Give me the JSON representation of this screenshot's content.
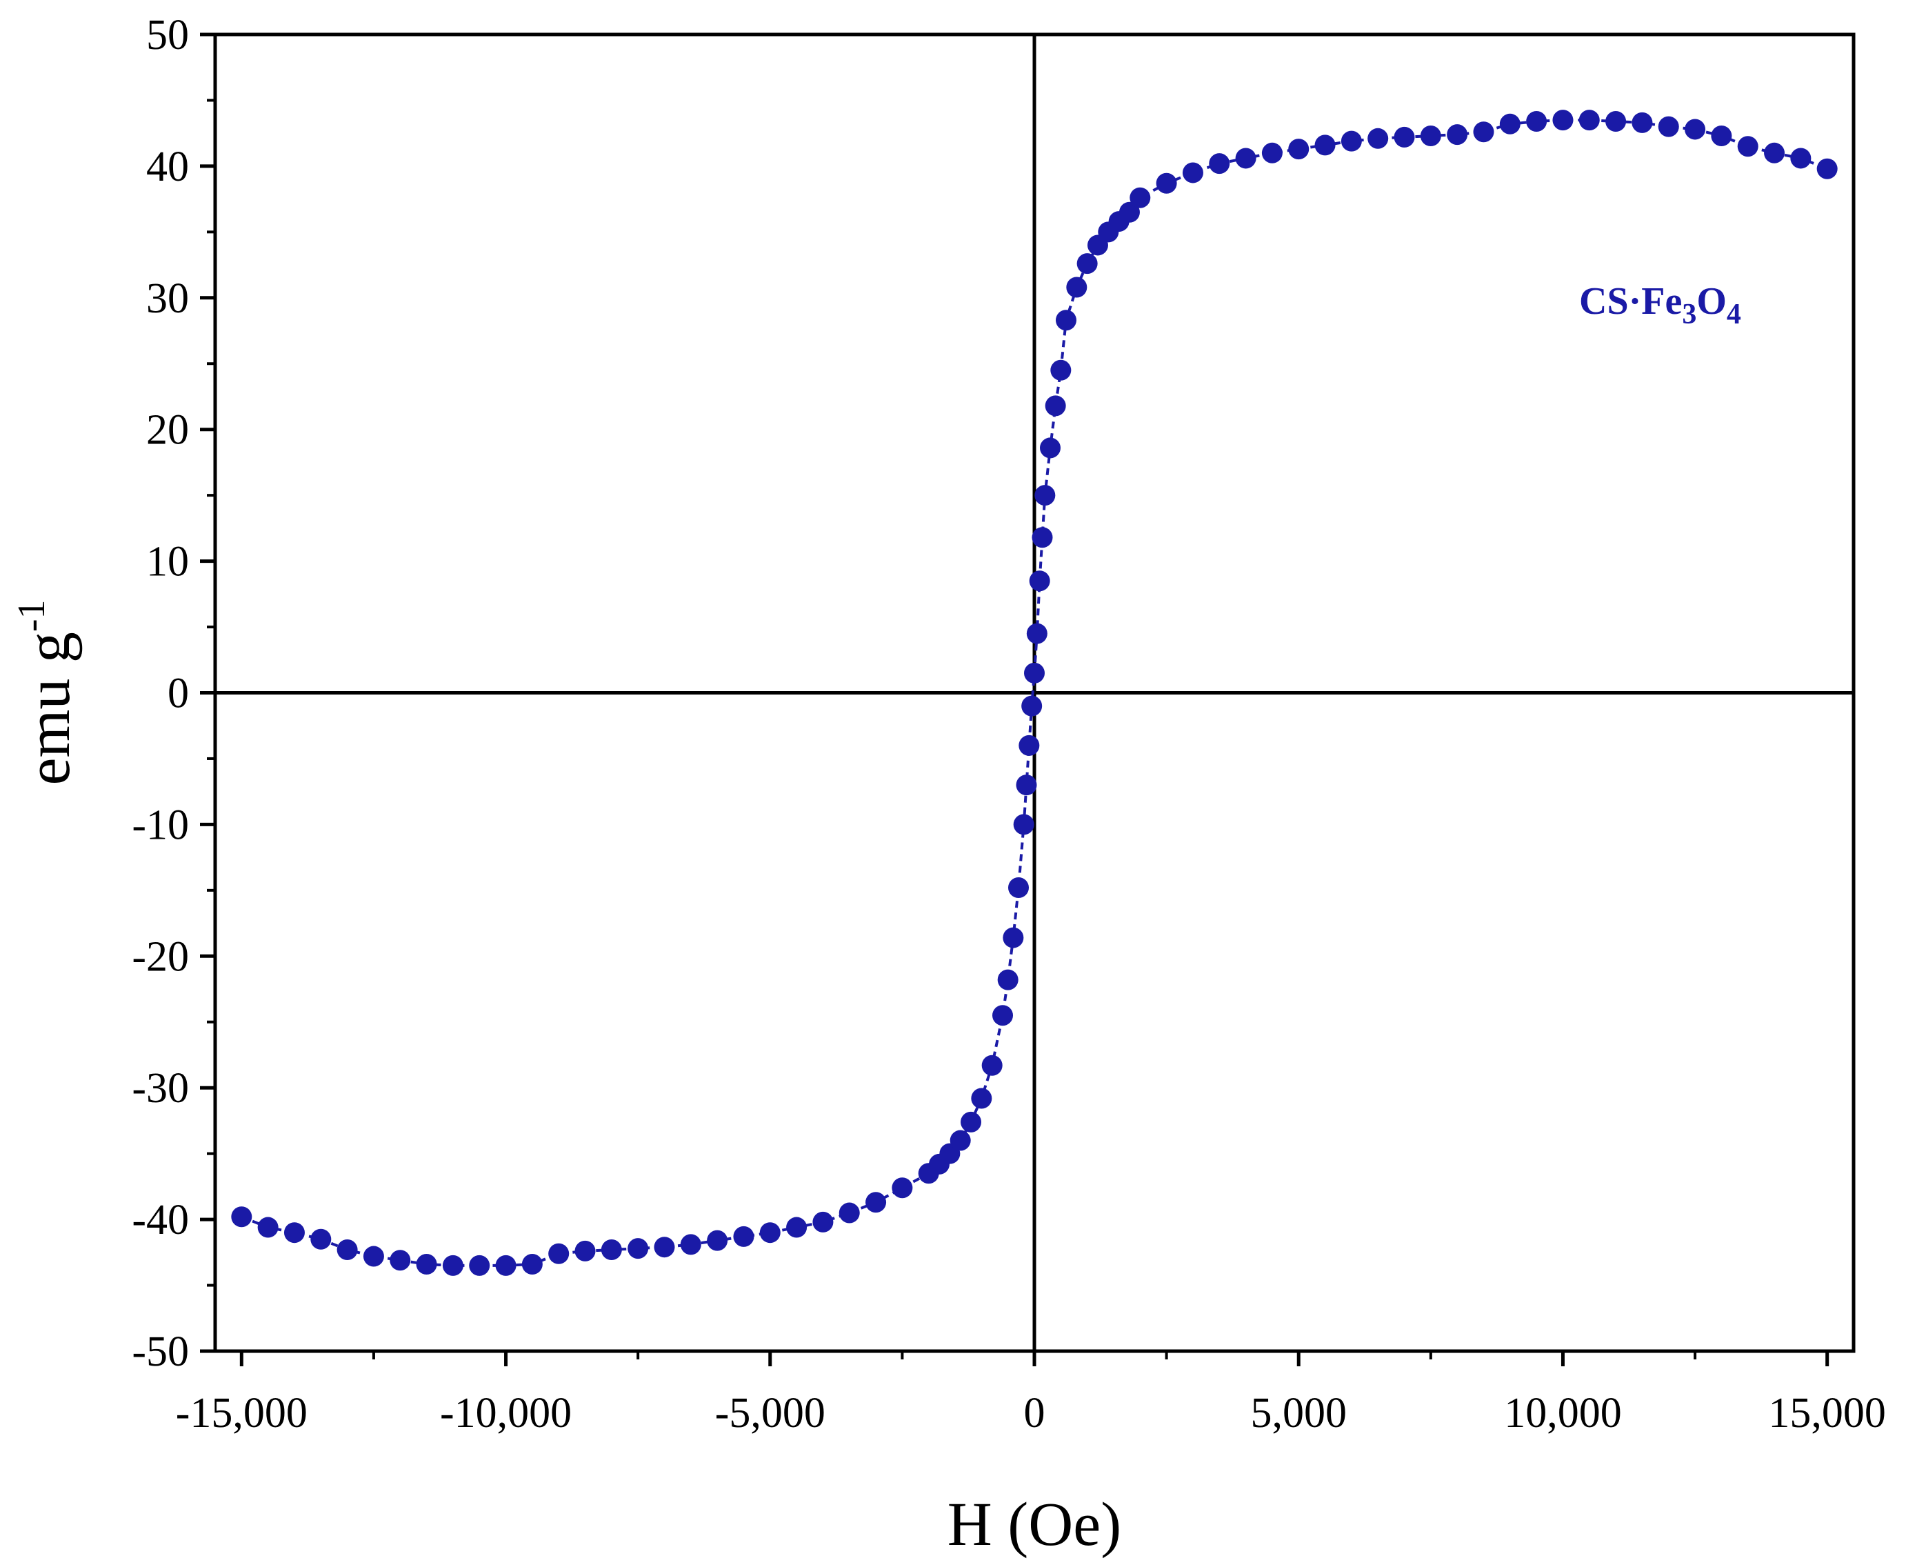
{
  "chart_data": {
    "type": "scatter",
    "title": "",
    "xlabel": "H (Oe)",
    "ylabel": {
      "base": "emu g",
      "superscript": "-1"
    },
    "xlim": [
      -15500,
      15500
    ],
    "ylim": [
      -50,
      50
    ],
    "xticks": [
      -15000,
      -10000,
      -5000,
      0,
      5000,
      10000,
      15000
    ],
    "xtick_labels": [
      "-15,000",
      "-10,000",
      "-5,000",
      "0",
      "5,000",
      "10,000",
      "15,000"
    ],
    "yticks": [
      -50,
      -40,
      -30,
      -20,
      -10,
      0,
      10,
      20,
      30,
      40,
      50
    ],
    "ytick_labels": [
      "-50",
      "-40",
      "-30",
      "-20",
      "-10",
      "0",
      "10",
      "20",
      "30",
      "40",
      "50"
    ],
    "grid": false,
    "series": [
      {
        "name": "CS-Fe3O4",
        "label_parts": [
          {
            "text": "CS·Fe",
            "sub": false
          },
          {
            "text": "3",
            "sub": true
          },
          {
            "text": "O",
            "sub": false
          },
          {
            "text": "4",
            "sub": true
          }
        ],
        "color": "#1a1aa6",
        "x": [
          -15000,
          -14500,
          -14000,
          -13500,
          -13000,
          -12500,
          -12000,
          -11500,
          -11000,
          -10500,
          -10000,
          -9500,
          -9000,
          -8500,
          -8000,
          -7500,
          -7000,
          -6500,
          -6000,
          -5500,
          -5000,
          -4500,
          -4000,
          -3500,
          -3000,
          -2500,
          -2000,
          -1800,
          -1600,
          -1400,
          -1200,
          -1000,
          -800,
          -600,
          -500,
          -400,
          -300,
          -200,
          -150,
          -100,
          -50,
          0,
          50,
          100,
          150,
          200,
          300,
          400,
          500,
          600,
          800,
          1000,
          1200,
          1400,
          1600,
          1800,
          2000,
          2500,
          3000,
          3500,
          4000,
          4500,
          5000,
          5500,
          6000,
          6500,
          7000,
          7500,
          8000,
          8500,
          9000,
          9500,
          10000,
          10500,
          11000,
          11500,
          12000,
          12500,
          13000,
          13500,
          14000,
          14500,
          15000
        ],
        "y": [
          -39.8,
          -40.6,
          -41.0,
          -41.5,
          -42.3,
          -42.8,
          -43.1,
          -43.4,
          -43.5,
          -43.5,
          -43.5,
          -43.4,
          -42.6,
          -42.4,
          -42.3,
          -42.2,
          -42.1,
          -41.9,
          -41.6,
          -41.3,
          -41.0,
          -40.6,
          -40.2,
          -39.5,
          -38.7,
          -37.6,
          -36.5,
          -35.8,
          -35.0,
          -34.0,
          -32.6,
          -30.8,
          -28.3,
          -24.5,
          -21.8,
          -18.6,
          -14.8,
          -10.0,
          -7.0,
          -4.0,
          -1.0,
          1.5,
          4.5,
          8.5,
          11.8,
          15.0,
          18.6,
          21.8,
          24.5,
          28.3,
          30.8,
          32.6,
          34.0,
          35.0,
          35.8,
          36.5,
          37.6,
          38.7,
          39.5,
          40.2,
          40.6,
          41.0,
          41.3,
          41.6,
          41.9,
          42.1,
          42.2,
          42.3,
          42.4,
          42.6,
          43.2,
          43.4,
          43.5,
          43.5,
          43.4,
          43.3,
          43.0,
          42.8,
          42.3,
          41.5,
          41.0,
          40.6,
          39.8
        ]
      }
    ],
    "annotations": [],
    "legend": "none (in-plot label top-right)"
  }
}
